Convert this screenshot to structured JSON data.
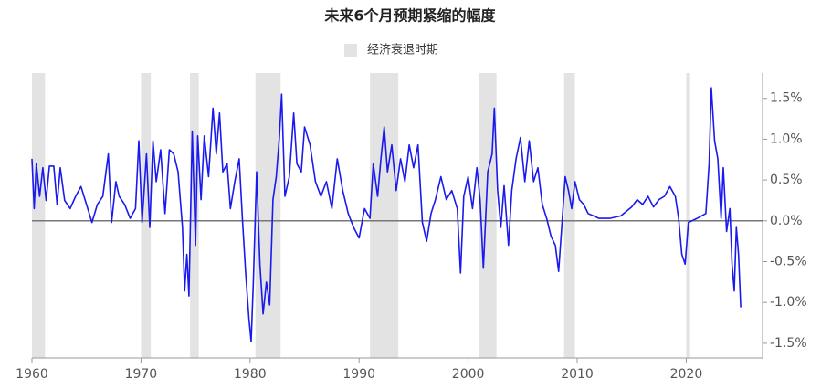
{
  "chart_data": {
    "type": "line",
    "title": "未来6个月预期紧缩的幅度",
    "recession_label": "经济衰退时期",
    "recession_color": "#e3e3e3",
    "recessions": [
      [
        1960.0,
        1961.2
      ],
      [
        1970.0,
        1970.9
      ],
      [
        1974.5,
        1975.3
      ],
      [
        1980.5,
        1982.8
      ],
      [
        1991.0,
        1993.6
      ],
      [
        2001.0,
        2002.6
      ],
      [
        2008.8,
        2009.8
      ],
      [
        2020.0,
        2020.35
      ]
    ],
    "color": "#1a1aee",
    "zero_color": "#777777",
    "x": [
      1960.0,
      1960.2,
      1960.4,
      1960.7,
      1961.0,
      1961.3,
      1961.6,
      1962.0,
      1962.3,
      1962.6,
      1963.0,
      1963.5,
      1964.0,
      1964.5,
      1965.0,
      1965.5,
      1966.0,
      1966.5,
      1967.0,
      1967.3,
      1967.7,
      1968.0,
      1968.5,
      1969.0,
      1969.5,
      1969.8,
      1970.1,
      1970.5,
      1970.8,
      1971.1,
      1971.4,
      1971.8,
      1972.2,
      1972.6,
      1973.0,
      1973.4,
      1973.8,
      1974.0,
      1974.2,
      1974.4,
      1974.7,
      1975.0,
      1975.2,
      1975.5,
      1975.8,
      1976.2,
      1976.6,
      1976.9,
      1977.2,
      1977.5,
      1977.9,
      1978.2,
      1978.6,
      1979.0,
      1979.3,
      1979.6,
      1979.9,
      1980.1,
      1980.3,
      1980.6,
      1980.9,
      1981.2,
      1981.5,
      1981.8,
      1982.1,
      1982.4,
      1982.7,
      1982.9,
      1983.2,
      1983.6,
      1984.0,
      1984.3,
      1984.7,
      1985.0,
      1985.5,
      1986.0,
      1986.5,
      1987.0,
      1987.5,
      1988.0,
      1988.5,
      1989.0,
      1989.5,
      1990.0,
      1990.5,
      1991.0,
      1991.3,
      1991.7,
      1992.0,
      1992.3,
      1992.6,
      1993.0,
      1993.4,
      1993.8,
      1994.2,
      1994.6,
      1995.0,
      1995.4,
      1995.8,
      1996.2,
      1996.6,
      1997.0,
      1997.5,
      1998.0,
      1998.5,
      1999.0,
      1999.3,
      1999.6,
      2000.0,
      2000.4,
      2000.8,
      2001.1,
      2001.4,
      2001.8,
      2002.2,
      2002.4,
      2002.7,
      2003.0,
      2003.3,
      2003.7,
      2004.0,
      2004.4,
      2004.8,
      2005.2,
      2005.6,
      2006.0,
      2006.4,
      2006.8,
      2007.2,
      2007.6,
      2008.0,
      2008.3,
      2008.7,
      2008.9,
      2009.2,
      2009.5,
      2009.8,
      2010.2,
      2010.6,
      2011.0,
      2011.5,
      2012.0,
      2013.0,
      2014.0,
      2015.0,
      2015.5,
      2016.0,
      2016.5,
      2017.0,
      2017.5,
      2018.0,
      2018.5,
      2019.0,
      2019.3,
      2019.6,
      2019.9,
      2020.2,
      2021.0,
      2021.8,
      2022.1,
      2022.3,
      2022.6,
      2022.9,
      2023.2,
      2023.4,
      2023.7,
      2024.0,
      2024.2,
      2024.4,
      2024.6,
      2024.8,
      2025.0
    ],
    "values": [
      0.76,
      0.15,
      0.7,
      0.3,
      0.65,
      0.25,
      0.67,
      0.67,
      0.2,
      0.65,
      0.25,
      0.15,
      0.3,
      0.42,
      0.2,
      -0.02,
      0.2,
      0.3,
      0.82,
      -0.02,
      0.48,
      0.3,
      0.2,
      0.03,
      0.15,
      0.98,
      -0.02,
      0.82,
      -0.08,
      0.98,
      0.48,
      0.87,
      0.09,
      0.87,
      0.82,
      0.6,
      -0.08,
      -0.86,
      -0.41,
      -0.92,
      1.1,
      -0.3,
      1.04,
      0.26,
      1.04,
      0.54,
      1.38,
      0.82,
      1.32,
      0.6,
      0.7,
      0.15,
      0.48,
      0.76,
      0.03,
      -0.64,
      -1.2,
      -1.48,
      -0.75,
      0.6,
      -0.53,
      -1.14,
      -0.75,
      -1.03,
      0.26,
      0.54,
      1.04,
      1.55,
      0.3,
      0.54,
      1.32,
      0.7,
      0.6,
      1.15,
      0.93,
      0.48,
      0.3,
      0.48,
      0.15,
      0.76,
      0.37,
      0.09,
      -0.08,
      -0.21,
      0.15,
      0.03,
      0.7,
      0.3,
      0.76,
      1.15,
      0.6,
      0.93,
      0.37,
      0.76,
      0.48,
      0.93,
      0.65,
      0.93,
      -0.02,
      -0.25,
      0.09,
      0.26,
      0.54,
      0.26,
      0.37,
      0.15,
      -0.64,
      0.3,
      0.54,
      0.15,
      0.65,
      0.26,
      -0.58,
      0.6,
      0.82,
      1.38,
      0.37,
      -0.08,
      0.43,
      -0.3,
      0.37,
      0.76,
      1.02,
      0.48,
      0.98,
      0.48,
      0.65,
      0.2,
      0.03,
      -0.19,
      -0.3,
      -0.62,
      0.15,
      0.54,
      0.37,
      0.15,
      0.48,
      0.26,
      0.2,
      0.09,
      0.06,
      0.03,
      0.03,
      0.06,
      0.17,
      0.26,
      0.2,
      0.3,
      0.17,
      0.26,
      0.3,
      0.42,
      0.3,
      0.03,
      -0.41,
      -0.53,
      -0.02,
      0.03,
      0.09,
      0.7,
      1.63,
      0.98,
      0.76,
      0.03,
      0.65,
      -0.13,
      0.15,
      -0.53,
      -0.86,
      -0.08,
      -0.41,
      -1.06
    ],
    "xlim": [
      1960,
      2027
    ],
    "ylim": [
      -1.68,
      1.81
    ],
    "xticks": [
      1960,
      1970,
      1980,
      1990,
      2000,
      2010,
      2020
    ],
    "yticks": [
      {
        "value": 1.5,
        "label": "1.5%"
      },
      {
        "value": 1.0,
        "label": "1.0%"
      },
      {
        "value": 0.5,
        "label": "0.5%"
      },
      {
        "value": 0.0,
        "label": "0.0%"
      },
      {
        "value": -0.5,
        "label": "-0.5%"
      },
      {
        "value": -1.0,
        "label": "-1.0%"
      },
      {
        "value": -1.5,
        "label": "-1.5%"
      }
    ]
  }
}
